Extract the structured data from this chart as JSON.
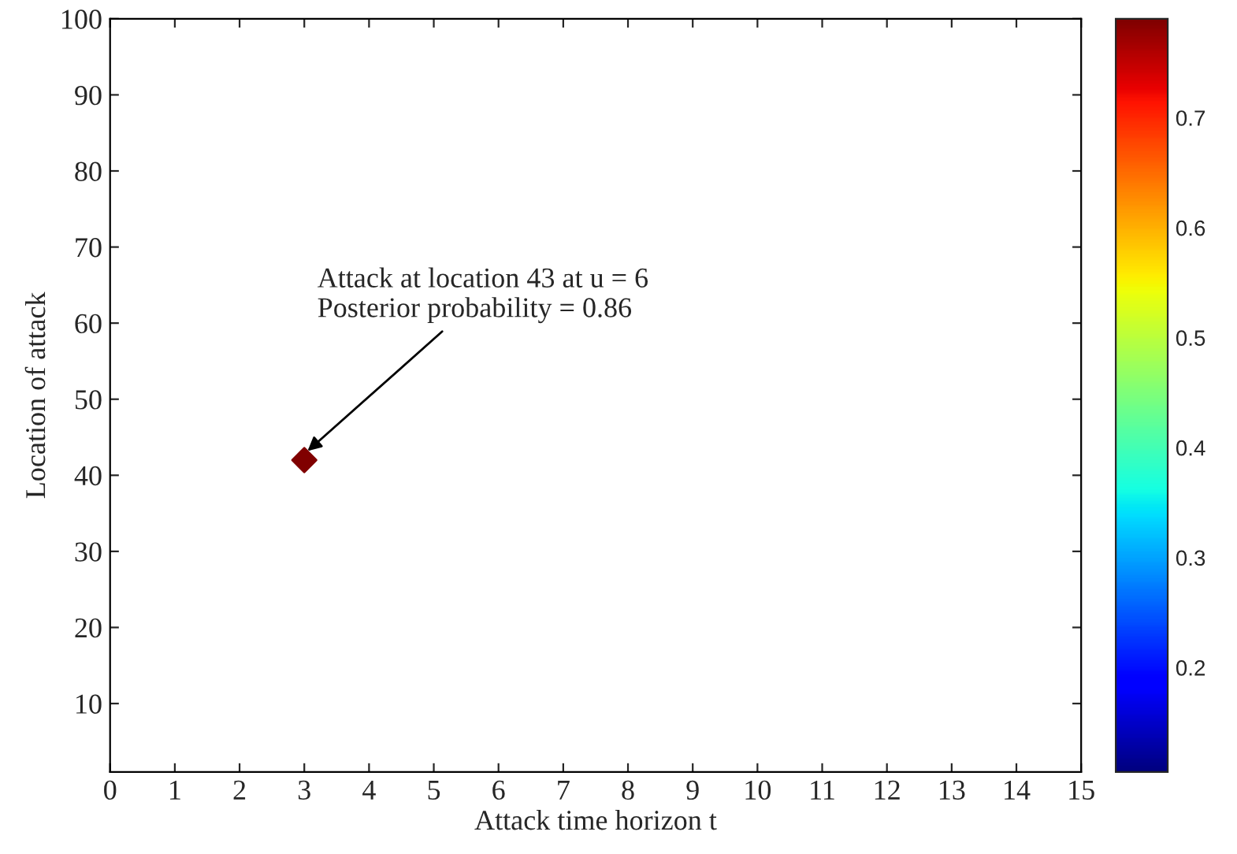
{
  "chart_data": {
    "type": "scatter",
    "xlabel": "Attack time horizon t",
    "ylabel": "Location of attack",
    "x": [
      3
    ],
    "values": [
      42
    ],
    "cvalues": [
      0.79
    ],
    "marker": "diamond",
    "xlim": [
      0,
      15
    ],
    "xticks": [
      0,
      1,
      2,
      3,
      4,
      5,
      6,
      7,
      8,
      9,
      10,
      11,
      12,
      13,
      14,
      15
    ],
    "ylim": [
      1,
      100
    ],
    "yticks": [
      10,
      20,
      30,
      40,
      50,
      60,
      70,
      80,
      90,
      100
    ],
    "clim": [
      0.105,
      0.79
    ],
    "cticks": [
      0.2,
      0.3,
      0.4,
      0.5,
      0.6,
      0.7
    ],
    "annotations": [
      {
        "text": "Attack at location 43 at u = 6\nPosterior probability = 0.86",
        "x": 3,
        "y": 42
      }
    ],
    "grid": false,
    "legend": false
  }
}
